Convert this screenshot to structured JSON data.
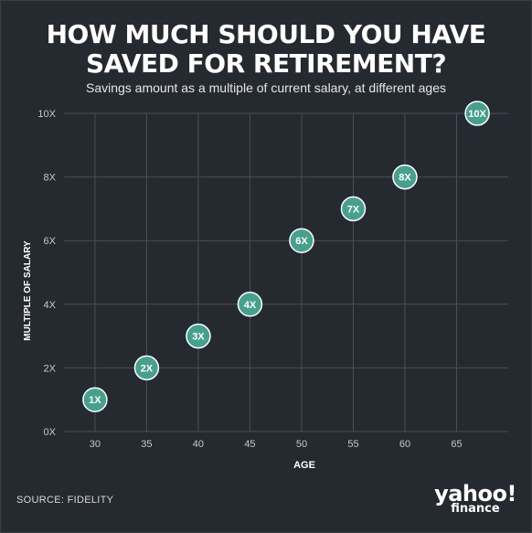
{
  "title_line1": "HOW MUCH SHOULD YOU HAVE",
  "title_line2": "SAVED FOR RETIREMENT?",
  "subtitle": "Savings amount as a multiple of current salary, at different ages",
  "source": "SOURCE: FIDELITY",
  "logo": {
    "brand": "yahoo!",
    "sub": "finance"
  },
  "colors": {
    "background": "#252a31",
    "grid": "#4a4f56",
    "point_fill": "#47a08e",
    "point_stroke": "#ffffff",
    "text": "#ffffff",
    "tick_text": "#c8c8c8"
  },
  "chart_data": {
    "type": "scatter",
    "xlabel": "AGE",
    "ylabel": "MULTIPLE OF SALARY",
    "xlim": [
      27,
      70
    ],
    "ylim": [
      0,
      10
    ],
    "x_ticks": [
      30,
      35,
      40,
      45,
      50,
      55,
      60,
      65
    ],
    "x_tick_labels": [
      "30",
      "35",
      "40",
      "45",
      "50",
      "55",
      "60",
      "65"
    ],
    "y_ticks": [
      0,
      2,
      4,
      6,
      8,
      10
    ],
    "y_tick_labels": [
      "0X",
      "2X",
      "4X",
      "6X",
      "8X",
      "10X"
    ],
    "grid": true,
    "points": [
      {
        "x": 30,
        "y": 1,
        "label": "1X"
      },
      {
        "x": 35,
        "y": 2,
        "label": "2X"
      },
      {
        "x": 40,
        "y": 3,
        "label": "3X"
      },
      {
        "x": 45,
        "y": 4,
        "label": "4X"
      },
      {
        "x": 50,
        "y": 6,
        "label": "6X"
      },
      {
        "x": 55,
        "y": 7,
        "label": "7X"
      },
      {
        "x": 60,
        "y": 8,
        "label": "8X"
      },
      {
        "x": 67,
        "y": 10,
        "label": "10X"
      }
    ]
  }
}
